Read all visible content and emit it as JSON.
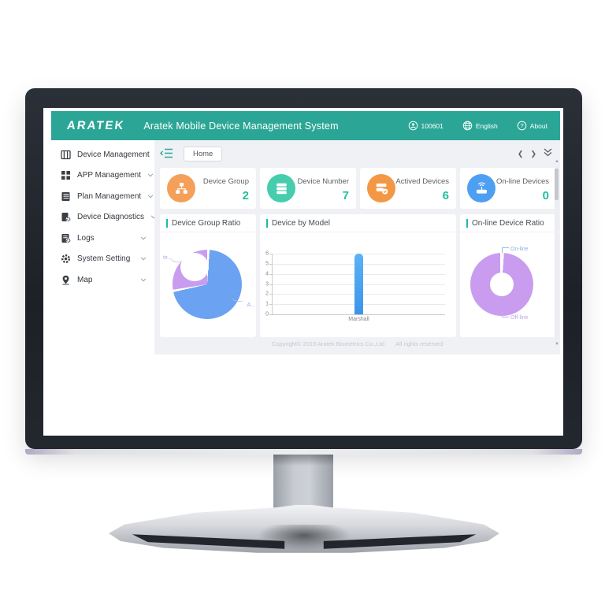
{
  "window": {
    "header": {
      "logo": "ARATEK",
      "title": "Aratek Mobile Device Management System",
      "user_id": "100601",
      "language_label": "English",
      "about_label": "About"
    },
    "sidebar": {
      "items": [
        {
          "label": "Device Management"
        },
        {
          "label": "APP Management"
        },
        {
          "label": "Plan Management"
        },
        {
          "label": "Device Diagnostics"
        },
        {
          "label": "Logs"
        },
        {
          "label": "System Setting"
        },
        {
          "label": "Map"
        }
      ]
    },
    "tabbar": {
      "home_tab": "Home"
    },
    "stat_cards": [
      {
        "label": "Device Group",
        "value": "2"
      },
      {
        "label": "Device Number",
        "value": "7"
      },
      {
        "label": "Actived Devices",
        "value": "6"
      },
      {
        "label": "On-line Devices",
        "value": "0"
      }
    ],
    "panels": [
      {
        "title": "Device Group Ratio"
      },
      {
        "title": "Device by Model"
      },
      {
        "title": "On-line Device Ratio"
      }
    ],
    "footer": {
      "copyright": "Copyright© 2019 Aratek Biometrics Co.,Ltd.",
      "rights": "All rights reserved"
    }
  },
  "colors": {
    "header_teal": "#2BA696",
    "accent_green": "#1FBF9D",
    "panel_accent": "#1FB9A5",
    "stat_icon_colors": [
      "#F5A05A",
      "#45CDAD",
      "#F39744",
      "#4D9FF2"
    ]
  },
  "chart_data": [
    {
      "id": "device-group-ratio",
      "type": "pie",
      "donut": true,
      "title": "Device Group Ratio",
      "slices": [
        {
          "label": "A...",
          "value": 5,
          "color": "#6CA2F2",
          "label_color": "#8FAEE8"
        },
        {
          "label": "te...",
          "value": 2,
          "color": "#C99CF0",
          "label_color": "#BCA6E2"
        }
      ]
    },
    {
      "id": "device-by-model",
      "type": "bar",
      "title": "Device by Model",
      "categories": [
        "Marshall"
      ],
      "values": [
        6
      ],
      "ylim": [
        0,
        6
      ],
      "ytick_step": 1,
      "grid": true,
      "bar_color_top": "#5AB2F6",
      "bar_color_bottom": "#3E93EA"
    },
    {
      "id": "online-device-ratio",
      "type": "pie",
      "donut": true,
      "title": "On-line Device Ratio",
      "slices": [
        {
          "label": "On-line",
          "value": 0,
          "color": "#6CA2F2",
          "label_color": "#8FAEE8"
        },
        {
          "label": "Off-line",
          "value": 7,
          "color": "#C99CF0",
          "label_color": "#BCA6E2"
        }
      ]
    }
  ]
}
